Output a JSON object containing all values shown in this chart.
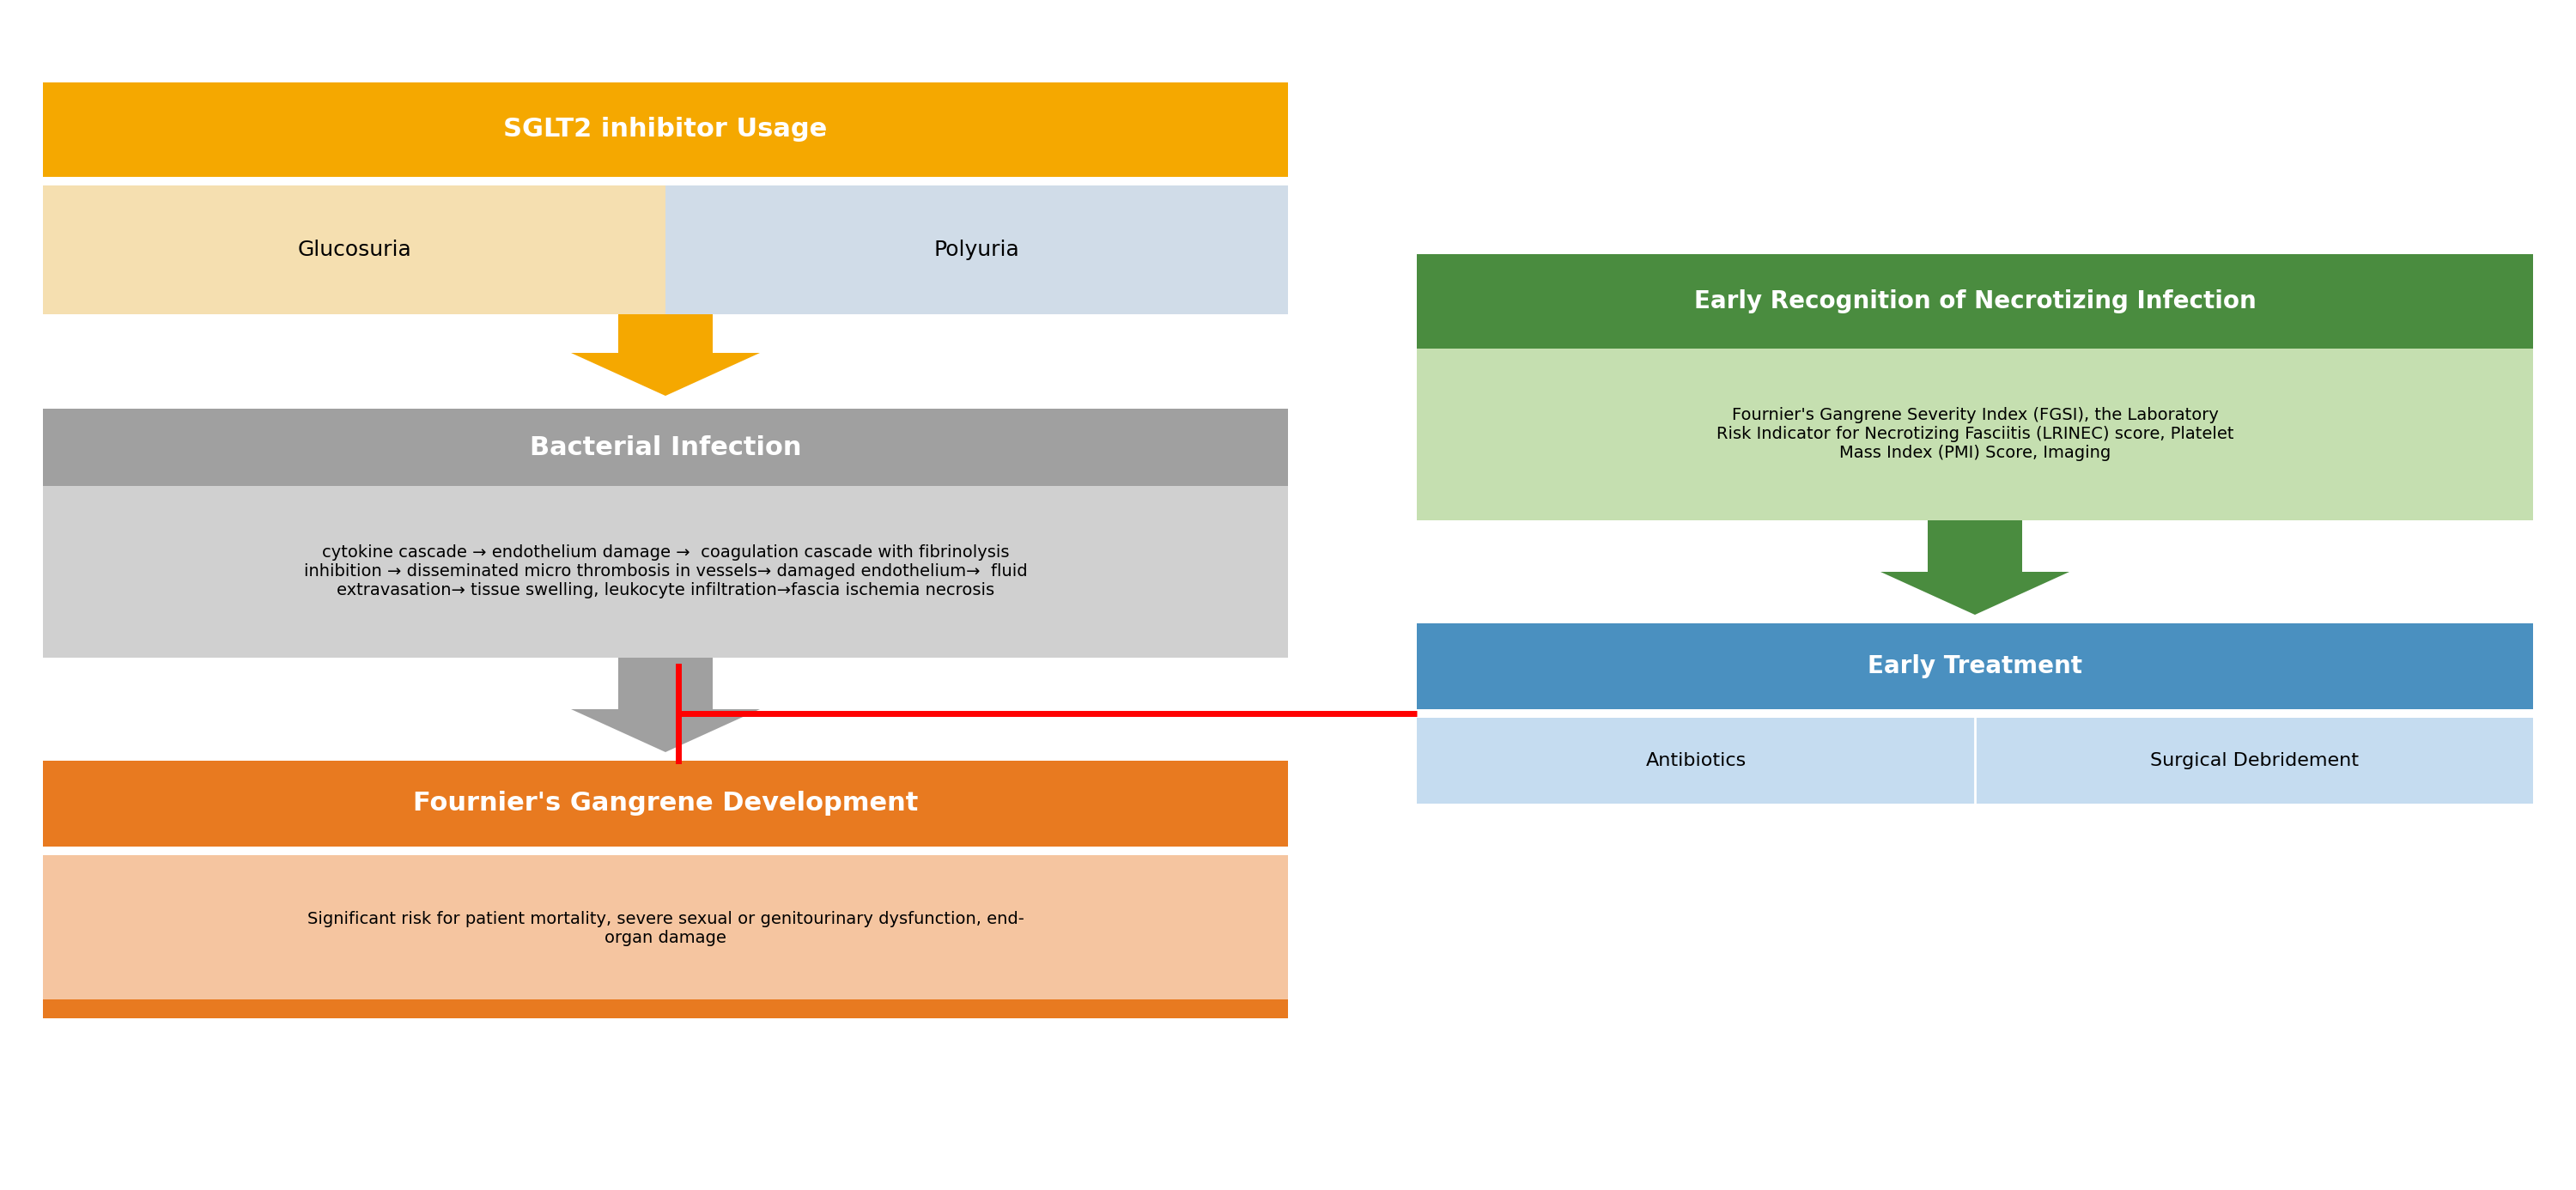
{
  "bg_color": "#ffffff",
  "title_sglt2": "SGLT2 inhibitor Usage",
  "sglt2_header_color": "#F5A800",
  "sglt2_left_label": "Glucosuria",
  "sglt2_left_color": "#F5DFB0",
  "sglt2_right_label": "Polyuria",
  "sglt2_right_color": "#D0DCE8",
  "bacterial_header": "Bacterial Infection",
  "bacterial_header_color": "#A0A0A0",
  "bacterial_body_color": "#D0D0D0",
  "bacterial_text": "cytokine cascade → endothelium damage →  coagulation cascade with fibrinolysis\ninhibition → disseminated micro thrombosis in vessels→ damaged endothelium→  fluid\nextravasation→ tissue swelling, leukocyte infiltration→fascia ischemia necrosis",
  "fournier_header": "Fournier's Gangrene Development",
  "fournier_header_color": "#E87A20",
  "fournier_body_color": "#F5C5A0",
  "fournier_text": "Significant risk for patient mortality, severe sexual or genitourinary dysfunction, end-\norgan damage",
  "right_header": "Early Recognition of Necrotizing Infection",
  "right_header_color": "#4A8C3F",
  "right_body_color": "#C5DFB0",
  "right_body_text": "Fournier's Gangrene Severity Index (FGSI), the Laboratory\nRisk Indicator for Necrotizing Fasciitis (LRINEC) score, Platelet\nMass Index (PMI) Score, Imaging",
  "treatment_header": "Early Treatment",
  "treatment_header_color": "#4A90C0",
  "treatment_body_color": "#C5DCF0",
  "treatment_left": "Antibiotics",
  "treatment_right": "Surgical Debridement"
}
